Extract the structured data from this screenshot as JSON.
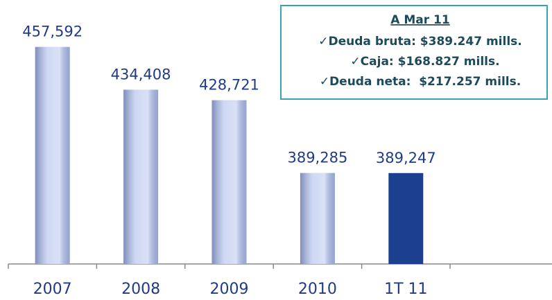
{
  "chart_data": {
    "type": "bar",
    "categories": [
      "2007",
      "2008",
      "2009",
      "2010",
      "1T 11"
    ],
    "values": [
      457592,
      434408,
      428721,
      389285,
      389247
    ],
    "value_labels": [
      "457,592",
      "434,408",
      "428,721",
      "389,285",
      "389,247"
    ],
    "colors": [
      "#b4c3ec",
      "#b4c3ec",
      "#b4c3ec",
      "#b4c3ec",
      "#1c3f8f"
    ],
    "ylim": [
      340000,
      480000
    ],
    "annotation": {
      "title": "A Mar 11",
      "lines": [
        "✓Deuda bruta: $389.247 mills.",
        "✓Caja: $168.827 mills.",
        "✓Deuda neta:  $217.257 mills."
      ]
    }
  }
}
